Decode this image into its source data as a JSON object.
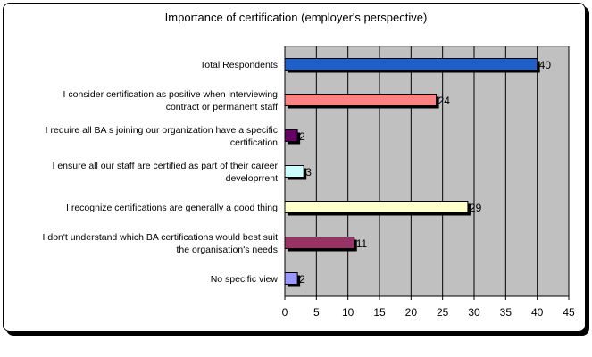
{
  "chart_data": {
    "type": "bar",
    "orientation": "horizontal",
    "title": "Importance of certification (employer's perspective)",
    "categories": [
      [
        "Total Respondents"
      ],
      [
        "I consider certification as positive when interviewing",
        "contract or permanent staff"
      ],
      [
        "I require all BA s joining our organization have a specific",
        "certification"
      ],
      [
        "I ensure all our staff are certified as part of their career",
        "developrrent"
      ],
      [
        "I recognize certifications are generally a good thing"
      ],
      [
        "I don't understand which BA certifications would best suit",
        "the organisation's needs"
      ],
      [
        "No specific view"
      ]
    ],
    "values": [
      40,
      24,
      2,
      3,
      29,
      11,
      2
    ],
    "colors": [
      "#1f5fc9",
      "#ff8080",
      "#660066",
      "#ccffff",
      "#ffffcc",
      "#993366",
      "#9999ff"
    ],
    "xlim": [
      0,
      45
    ],
    "xticks": [
      0,
      5,
      10,
      15,
      20,
      25,
      30,
      35,
      40,
      45
    ],
    "grid": true,
    "plot_background": "#c0c0c0",
    "legend": "none"
  }
}
